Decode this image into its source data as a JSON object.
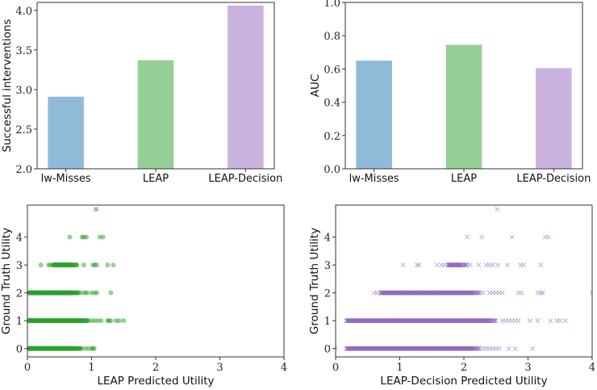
{
  "chart_data": [
    {
      "type": "bar",
      "categories": [
        "lw-Misses",
        "LEAP",
        "LEAP-Decision"
      ],
      "values": [
        2.91,
        3.37,
        4.06
      ],
      "colors": [
        "#8fbbd9",
        "#95cf95",
        "#c9b3de"
      ],
      "xlabel": "",
      "ylabel": "Successful interventions",
      "ylim": [
        2.0,
        4.1
      ],
      "yticks": [
        "2.0",
        "2.5",
        "3.0",
        "3.5",
        "4.0"
      ],
      "grid": false
    },
    {
      "type": "bar",
      "categories": [
        "lw-Misses",
        "LEAP",
        "LEAP-Decision"
      ],
      "values": [
        0.65,
        0.745,
        0.605
      ],
      "colors": [
        "#8fbbd9",
        "#95cf95",
        "#c9b3de"
      ],
      "xlabel": "",
      "ylabel": "AUC",
      "ylim": [
        0.0,
        1.0
      ],
      "yticks": [
        "0.0",
        "0.2",
        "0.4",
        "0.6",
        "0.8",
        "1.0"
      ],
      "grid": false
    },
    {
      "type": "scatter",
      "marker": "circle",
      "color": "#2ca02c",
      "xlabel": "LEAP Predicted Utility",
      "ylabel": "Ground Truth Utility",
      "xlim": [
        0,
        4
      ],
      "ylim": [
        -0.3,
        5.15
      ],
      "xticks": [
        "0",
        "1",
        "2",
        "3",
        "4"
      ],
      "yticks": [
        "0",
        "1",
        "2",
        "3",
        "4"
      ],
      "grid": false,
      "dense_segments": [
        {
          "y": 0,
          "x_from": 0.0,
          "x_to": 0.85
        },
        {
          "y": 1,
          "x_from": 0.0,
          "x_to": 0.95
        },
        {
          "y": 2,
          "x_from": 0.02,
          "x_to": 0.8
        },
        {
          "y": 3,
          "x_from": 0.4,
          "x_to": 0.78
        }
      ],
      "points": [
        {
          "y": 0,
          "x": [
            0.9,
            0.95,
            1.0,
            1.02,
            1.04
          ]
        },
        {
          "y": 1,
          "x": [
            1.0,
            1.05,
            1.1,
            1.15,
            1.25,
            1.27,
            1.3,
            1.38,
            1.43,
            1.5
          ]
        },
        {
          "y": 2,
          "x": [
            0.85,
            0.9,
            0.93,
            1.0,
            1.05,
            1.08,
            1.3
          ]
        },
        {
          "y": 3,
          "x": [
            0.21,
            0.33,
            0.36,
            0.88,
            1.02,
            1.05,
            1.08,
            1.25,
            1.34
          ]
        },
        {
          "y": 4,
          "x": [
            0.66,
            0.85,
            0.88,
            0.92,
            1.13,
            1.18
          ]
        },
        {
          "y": 5,
          "x": [
            1.07
          ]
        }
      ]
    },
    {
      "type": "scatter",
      "marker": "x",
      "color": "#9467bd",
      "xlabel": "LEAP-Decision Predicted Utility",
      "ylabel": "Ground Truth Utility",
      "xlim": [
        0,
        4
      ],
      "ylim": [
        -0.3,
        5.15
      ],
      "xticks": [
        "0",
        "1",
        "2",
        "3",
        "4"
      ],
      "yticks": [
        "0",
        "1",
        "2",
        "3",
        "4"
      ],
      "grid": false,
      "dense_segments": [
        {
          "y": 0,
          "x_from": 0.17,
          "x_to": 2.25
        },
        {
          "y": 1,
          "x_from": 0.17,
          "x_to": 2.5
        },
        {
          "y": 2,
          "x_from": 0.7,
          "x_to": 2.25
        },
        {
          "y": 3,
          "x_from": 1.75,
          "x_to": 2.05
        }
      ],
      "points": [
        {
          "y": 0,
          "x": [
            0.0,
            2.3,
            2.35,
            2.4,
            2.45,
            2.5,
            2.55,
            2.7,
            2.8,
            3.07
          ]
        },
        {
          "y": 1,
          "x": [
            2.6,
            2.65,
            2.7,
            2.75,
            2.8,
            2.85,
            3.03,
            3.15,
            3.35,
            3.45,
            3.5,
            3.58
          ]
        },
        {
          "y": 2,
          "x": [
            0.6,
            0.65,
            2.3,
            2.4,
            2.45,
            2.5,
            2.55,
            2.6,
            2.85,
            2.9,
            3.15,
            3.2,
            3.23,
            4.0
          ]
        },
        {
          "y": 3,
          "x": [
            1.05,
            1.27,
            1.3,
            1.58,
            1.65,
            1.7,
            2.1,
            2.23,
            2.35,
            2.4,
            2.45,
            2.53,
            2.68,
            2.88,
            2.93,
            3.2
          ]
        },
        {
          "y": 4,
          "x": [
            2.05,
            2.28,
            2.75,
            3.27,
            3.32
          ]
        },
        {
          "y": 5,
          "x": [
            2.52
          ]
        }
      ]
    }
  ]
}
